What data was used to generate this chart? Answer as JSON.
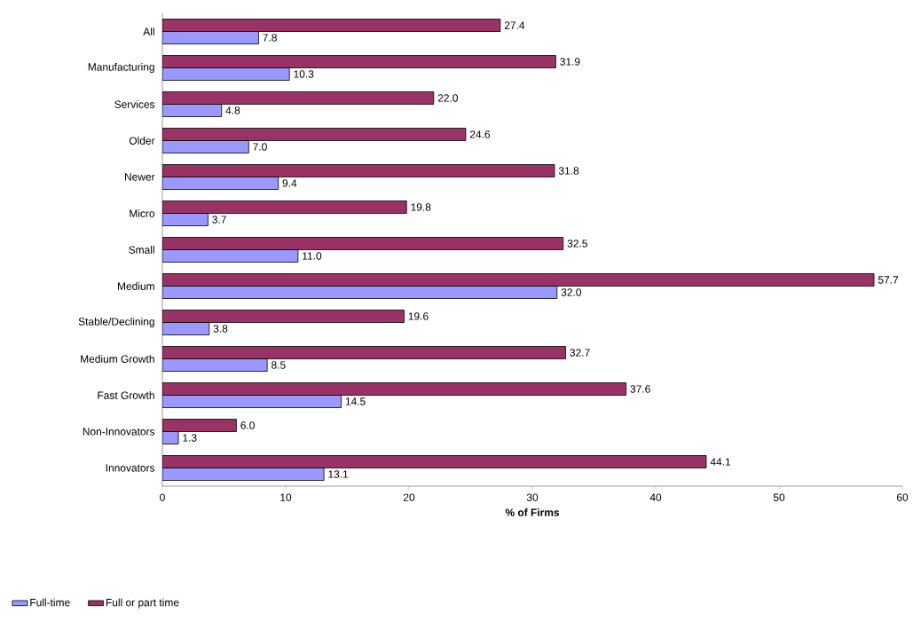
{
  "chart_data": {
    "type": "bar",
    "orientation": "horizontal",
    "xlabel": "% of Firms",
    "categories": [
      "All",
      "Manufacturing",
      "Services",
      "Older",
      "Newer",
      "Micro",
      "Small",
      "Medium",
      "Stable/Declining",
      "Medium Growth",
      "Fast Growth",
      "Non-Innovators",
      "Innovators"
    ],
    "series": [
      {
        "name": "Full-time",
        "color": "#9999ff",
        "values": [
          7.8,
          10.3,
          4.8,
          7.0,
          9.4,
          3.7,
          11.0,
          32.0,
          3.8,
          8.5,
          14.5,
          1.3,
          13.1
        ],
        "value_labels": [
          "7.8",
          "10.3",
          "4.8",
          "7.0",
          "9.4",
          "3.7",
          "11.0",
          "32.0",
          "3.8",
          "8.5",
          "14.5",
          "1.3",
          "13.1"
        ]
      },
      {
        "name": "Full or part time",
        "color": "#993366",
        "values": [
          27.4,
          31.9,
          22.0,
          24.6,
          31.8,
          19.8,
          32.5,
          57.7,
          19.6,
          32.7,
          37.6,
          6.0,
          44.1
        ],
        "value_labels": [
          "27.4",
          "31.9",
          "22.0",
          "24.6",
          "31.8",
          "19.8",
          "32.5",
          "57.7",
          "19.6",
          "32.7",
          "37.6",
          "6.0",
          "44.1"
        ]
      }
    ],
    "xlim": [
      0,
      60
    ],
    "xticks": [
      0,
      10,
      20,
      30,
      40,
      50,
      60
    ],
    "grid": false,
    "legend": "bottom left"
  }
}
